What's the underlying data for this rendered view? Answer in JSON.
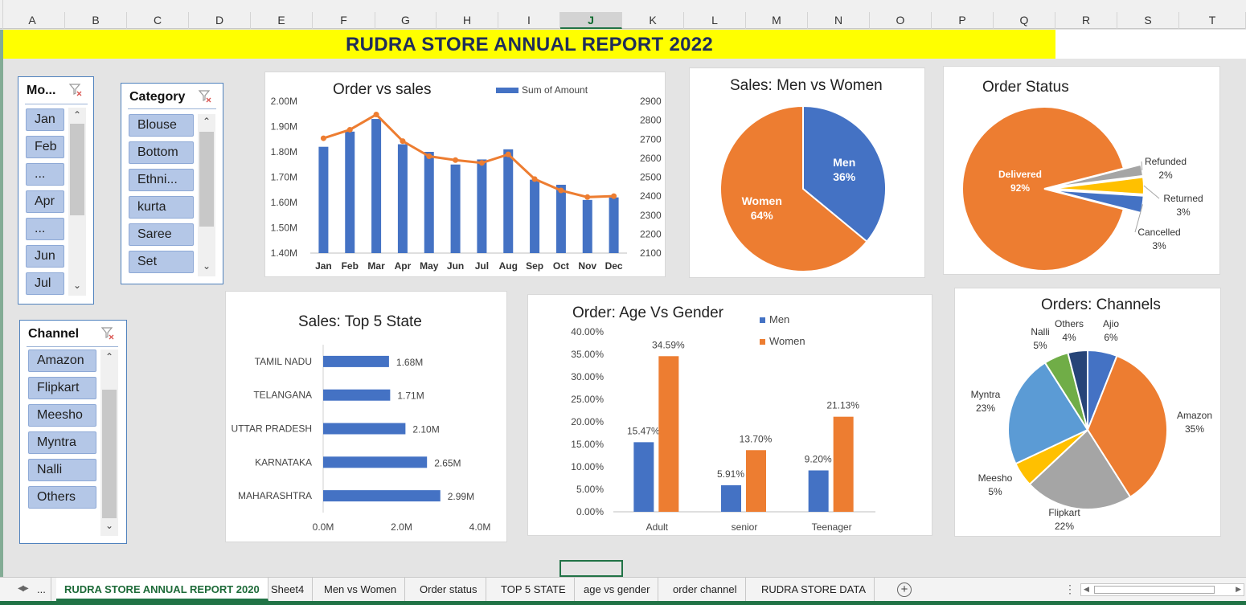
{
  "columns": [
    "A",
    "B",
    "C",
    "D",
    "E",
    "F",
    "G",
    "H",
    "I",
    "J",
    "K",
    "L",
    "M",
    "N",
    "O",
    "P",
    "Q",
    "R",
    "S",
    "T"
  ],
  "active_column": "J",
  "report_title": "RUDRA STORE ANNUAL REPORT 2022",
  "slicers": {
    "month": {
      "header": "Mo...",
      "items": [
        "Jan",
        "Feb",
        "...",
        "Apr",
        "...",
        "Jun",
        "Jul"
      ]
    },
    "category": {
      "header": "Category",
      "items": [
        "Blouse",
        "Bottom",
        "Ethni...",
        "kurta",
        "Saree",
        "Set"
      ]
    },
    "channel": {
      "header": "Channel",
      "items": [
        "Amazon",
        "Flipkart",
        "Meesho",
        "Myntra",
        "Nalli",
        "Others"
      ]
    }
  },
  "icons": {
    "filter": "clear-filter-icon",
    "scroll_up": "chevron-up-icon",
    "scroll_down": "chevron-down-icon",
    "add_sheet": "plus-circle-icon"
  },
  "colors": {
    "blue": "#4472c4",
    "orange": "#ed7d31",
    "gray": "#a5a5a5",
    "yellow": "#ffc000",
    "light_blue": "#5b9bd5",
    "green": "#70ad47",
    "navy": "#264478",
    "title_bg": "#ffff00",
    "excel_green": "#217346"
  },
  "chart_data": [
    {
      "id": "order_vs_sales",
      "type": "bar",
      "title": "Order vs sales",
      "categories": [
        "Jan",
        "Feb",
        "Mar",
        "Apr",
        "May",
        "Jun",
        "Jul",
        "Aug",
        "Sep",
        "Oct",
        "Nov",
        "Dec"
      ],
      "series": [
        {
          "name": "Sum of Amount",
          "axis": "left",
          "values": [
            1.82,
            1.88,
            1.93,
            1.83,
            1.8,
            1.75,
            1.77,
            1.81,
            1.69,
            1.67,
            1.61,
            1.62
          ]
        },
        {
          "type": "line",
          "axis": "right",
          "values": [
            2705,
            2750,
            2830,
            2690,
            2610,
            2590,
            2575,
            2620,
            2490,
            2430,
            2395,
            2400
          ]
        }
      ],
      "y_ticks_left": [
        "2.00M",
        "1.90M",
        "1.80M",
        "1.70M",
        "1.60M",
        "1.50M",
        "1.40M"
      ],
      "ylim_left": [
        1.4,
        2.0
      ],
      "y_ticks_right": [
        "2900",
        "2800",
        "2700",
        "2600",
        "2500",
        "2400",
        "2300",
        "2200",
        "2100"
      ],
      "ylim_right": [
        2100,
        2900
      ],
      "legend": "top-right"
    },
    {
      "id": "sales_men_women",
      "type": "pie",
      "title": "Sales: Men vs Women",
      "labels": [
        "Men",
        "Women"
      ],
      "values": [
        36,
        64
      ],
      "value_labels": [
        "36%",
        "64%"
      ]
    },
    {
      "id": "order_status",
      "type": "pie",
      "title": "Order Status",
      "labels": [
        "Delivered",
        "Refunded",
        "Returned",
        "Cancelled"
      ],
      "values": [
        92,
        2,
        3,
        3
      ],
      "value_labels": [
        "92%",
        "2%",
        "3%",
        "3%"
      ]
    },
    {
      "id": "top5_state",
      "type": "bar",
      "title": "Sales: Top 5 State",
      "categories": [
        "TAMIL NADU",
        "TELANGANA",
        "UTTAR PRADESH",
        "KARNATAKA",
        "MAHARASHTRA"
      ],
      "values": [
        1.68,
        1.71,
        2.1,
        2.65,
        2.99
      ],
      "value_labels": [
        "1.68M",
        "1.71M",
        "2.10M",
        "2.65M",
        "2.99M"
      ],
      "x_ticks": [
        "0.0M",
        "2.0M",
        "4.0M"
      ],
      "xlim": [
        0,
        4
      ]
    },
    {
      "id": "age_gender",
      "type": "bar",
      "title": "Order: Age Vs Gender",
      "categories": [
        "Adult",
        "senior",
        "Teenager"
      ],
      "series": [
        {
          "name": "Men",
          "values": [
            15.47,
            5.91,
            9.2
          ],
          "value_labels": [
            "15.47%",
            "5.91%",
            "9.20%"
          ]
        },
        {
          "name": "Women",
          "values": [
            34.59,
            13.7,
            21.13
          ],
          "value_labels": [
            "34.59%",
            "13.70%",
            "21.13%"
          ]
        }
      ],
      "y_ticks": [
        "40.00%",
        "35.00%",
        "30.00%",
        "25.00%",
        "20.00%",
        "15.00%",
        "10.00%",
        "5.00%",
        "0.00%"
      ],
      "ylim": [
        0,
        40
      ],
      "legend": "top-right"
    },
    {
      "id": "orders_channels",
      "type": "pie",
      "title": "Orders: Channels",
      "labels": [
        "Ajio",
        "Amazon",
        "Flipkart",
        "Meesho",
        "Myntra",
        "Nalli",
        "Others"
      ],
      "values": [
        6,
        35,
        22,
        5,
        23,
        5,
        4
      ],
      "value_labels": [
        "6%",
        "35%",
        "22%",
        "5%",
        "23%",
        "5%",
        "4%"
      ]
    }
  ],
  "sheet_tabs": {
    "nav": "...",
    "items": [
      "RUDRA STORE ANNUAL REPORT 2020",
      "Sheet4",
      "Men vs Women",
      "Order status",
      "TOP 5 STATE",
      "age vs gender",
      "order channel",
      "RUDRA STORE DATA"
    ],
    "active": 0
  }
}
